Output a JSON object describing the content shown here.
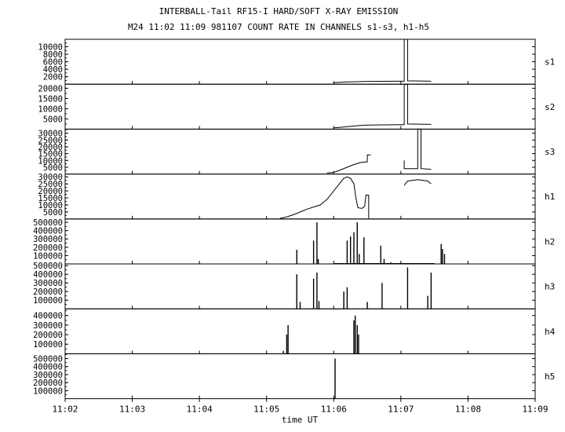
{
  "chart_data": {
    "type": "line",
    "title": "INTERBALL-Tail RF15-I HARD/SOFT X-RAY EMISSION",
    "subtitle": "M24  11:02 11:09 981107  COUNT RATE IN CHANNELS s1-s3, h1-h5",
    "xlabel": "time UT",
    "x_ticks": [
      "11:02",
      "11:03",
      "11:04",
      "11:05",
      "11:06",
      "11:07",
      "11:08",
      "11:09"
    ],
    "xlim": [
      "11:02",
      "11:09"
    ],
    "panels": [
      {
        "name": "s1",
        "ylim": [
          0,
          12000
        ],
        "yticks": [
          2000,
          4000,
          6000,
          8000,
          10000
        ],
        "style": "line",
        "data": [
          [
            "11:06.0",
            400
          ],
          [
            "11:06.1",
            500
          ],
          [
            "11:06.2",
            600
          ],
          [
            "11:06.3",
            650
          ],
          [
            "11:06.4",
            700
          ],
          [
            "11:06.5",
            750
          ],
          [
            "11:07.05",
            800
          ],
          [
            "11:07.05",
            12000
          ],
          [
            "11:07.1",
            12000
          ],
          [
            "11:07.1",
            900
          ],
          [
            "11:07.45",
            800
          ]
        ]
      },
      {
        "name": "s2",
        "ylim": [
          0,
          22000
        ],
        "yticks": [
          5000,
          10000,
          15000,
          20000
        ],
        "style": "line",
        "data": [
          [
            "11:06.0",
            600
          ],
          [
            "11:06.1",
            900
          ],
          [
            "11:06.2",
            1200
          ],
          [
            "11:06.3",
            1500
          ],
          [
            "11:06.4",
            1800
          ],
          [
            "11:06.5",
            2000
          ],
          [
            "11:07.05",
            2200
          ],
          [
            "11:07.05",
            22000
          ],
          [
            "11:07.1",
            22000
          ],
          [
            "11:07.1",
            2500
          ],
          [
            "11:07.45",
            2300
          ]
        ]
      },
      {
        "name": "s3",
        "ylim": [
          0,
          33000
        ],
        "yticks": [
          5000,
          10000,
          15000,
          20000,
          25000,
          30000
        ],
        "style": "line",
        "data": [
          [
            "11:05.9",
            800
          ],
          [
            "11:06.0",
            1200
          ],
          [
            "11:06.1",
            3000
          ],
          [
            "11:06.2",
            5000
          ],
          [
            "11:06.3",
            7000
          ],
          [
            "11:06.4",
            8500
          ],
          [
            "11:06.5",
            9000
          ],
          [
            "11:06.5",
            14000
          ],
          [
            "11:06.55",
            14000
          ]
        ],
        "data2": [
          [
            "11:07.05",
            10000
          ],
          [
            "11:07.05",
            4000
          ],
          [
            "11:07.15",
            4000
          ],
          [
            "11:07.25",
            4000
          ],
          [
            "11:07.25",
            33000
          ],
          [
            "11:07.3",
            33000
          ],
          [
            "11:07.3",
            4000
          ],
          [
            "11:07.45",
            3500
          ]
        ]
      },
      {
        "name": "h1",
        "ylim": [
          0,
          32000
        ],
        "yticks": [
          5000,
          10000,
          15000,
          20000,
          25000,
          30000
        ],
        "style": "line",
        "data": [
          [
            "11:05.2",
            400
          ],
          [
            "11:05.3",
            1500
          ],
          [
            "11:05.4",
            3000
          ],
          [
            "11:05.5",
            5000
          ],
          [
            "11:05.6",
            7000
          ],
          [
            "11:05.7",
            8500
          ],
          [
            "11:05.8",
            10000
          ],
          [
            "11:05.85",
            12000
          ],
          [
            "11:05.9",
            14000
          ],
          [
            "11:05.95",
            17000
          ],
          [
            "11:06.0",
            20000
          ],
          [
            "11:06.05",
            23000
          ],
          [
            "11:06.1",
            26000
          ],
          [
            "11:06.15",
            29000
          ],
          [
            "11:06.2",
            30000
          ],
          [
            "11:06.25",
            29000
          ],
          [
            "11:06.3",
            25000
          ],
          [
            "11:06.33",
            15000
          ],
          [
            "11:06.36",
            8000
          ],
          [
            "11:06.42",
            7500
          ],
          [
            "11:06.46",
            9000
          ],
          [
            "11:06.48",
            17000
          ],
          [
            "11:06.52",
            17000
          ],
          [
            "11:06.52",
            400
          ]
        ],
        "data2": [
          [
            "11:07.05",
            24000
          ],
          [
            "11:07.1",
            27000
          ],
          [
            "11:07.25",
            28000
          ],
          [
            "11:07.4",
            27000
          ],
          [
            "11:07.45",
            25000
          ]
        ]
      },
      {
        "name": "h2",
        "ylim": [
          0,
          540000
        ],
        "yticks": [
          100000,
          200000,
          300000,
          400000,
          500000
        ],
        "style": "spikes",
        "baseline": [
          [
            "11:06.0",
            "11:07.5",
            5000
          ]
        ],
        "data": [
          [
            "11:05.45",
            170000
          ],
          [
            "11:05.7",
            280000
          ],
          [
            "11:05.75",
            500000
          ],
          [
            "11:05.77",
            60000
          ],
          [
            "11:06.2",
            280000
          ],
          [
            "11:06.25",
            330000
          ],
          [
            "11:06.3",
            380000
          ],
          [
            "11:06.35",
            500000
          ],
          [
            "11:06.38",
            120000
          ],
          [
            "11:06.45",
            320000
          ],
          [
            "11:06.7",
            220000
          ],
          [
            "11:06.75",
            60000
          ],
          [
            "11:06.85",
            20000
          ],
          [
            "11:07.6",
            240000
          ],
          [
            "11:07.62",
            180000
          ],
          [
            "11:07.65",
            120000
          ]
        ]
      },
      {
        "name": "h3",
        "ylim": [
          0,
          520000
        ],
        "yticks": [
          100000,
          200000,
          300000,
          400000,
          500000
        ],
        "style": "spikes",
        "data": [
          [
            "11:05.45",
            400000
          ],
          [
            "11:05.5",
            80000
          ],
          [
            "11:05.7",
            350000
          ],
          [
            "11:05.75",
            420000
          ],
          [
            "11:05.78",
            90000
          ],
          [
            "11:06.15",
            200000
          ],
          [
            "11:06.2",
            250000
          ],
          [
            "11:06.5",
            80000
          ],
          [
            "11:06.72",
            300000
          ],
          [
            "11:07.1",
            480000
          ],
          [
            "11:07.4",
            150000
          ],
          [
            "11:07.45",
            420000
          ]
        ]
      },
      {
        "name": "h4",
        "ylim": [
          0,
          470000
        ],
        "yticks": [
          100000,
          200000,
          300000,
          400000
        ],
        "style": "spikes",
        "data": [
          [
            "11:05.25",
            30000
          ],
          [
            "11:05.3",
            200000
          ],
          [
            "11:05.32",
            300000
          ],
          [
            "11:06.3",
            350000
          ],
          [
            "11:06.32",
            400000
          ],
          [
            "11:06.35",
            300000
          ],
          [
            "11:06.37",
            200000
          ]
        ]
      },
      {
        "name": "h5",
        "ylim": [
          0,
          560000
        ],
        "yticks": [
          100000,
          200000,
          300000,
          400000,
          500000
        ],
        "style": "spikes",
        "data": [
          [
            "11:06.02",
            500000
          ]
        ]
      }
    ]
  }
}
